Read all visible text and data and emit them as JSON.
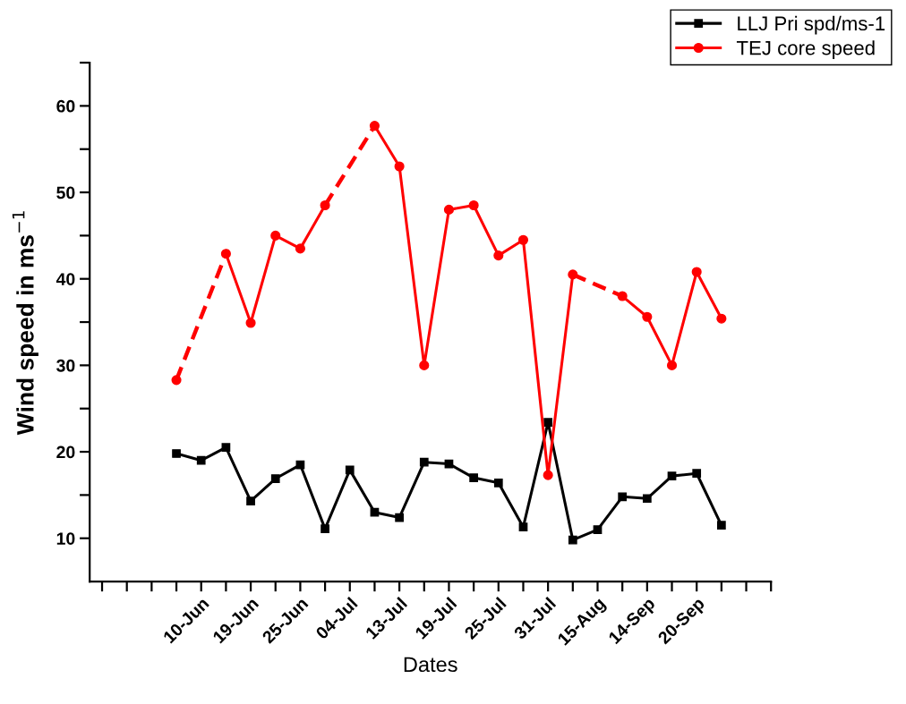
{
  "chart_data": {
    "type": "line",
    "xlabel": "Dates",
    "ylabel": "Wind speed in ms$^{−1}$",
    "categories": [
      null,
      null,
      null,
      null,
      "10-Jun",
      null,
      "19-Jun",
      null,
      "25-Jun",
      null,
      "04-Jul",
      null,
      "13-Jul",
      null,
      "19-Jul",
      null,
      "25-Jul",
      null,
      "31-Jul",
      null,
      "15-Aug",
      null,
      "14-Sep",
      null,
      "20-Sep",
      null,
      null,
      null
    ],
    "series": [
      {
        "name": "LLJ Pri spd/ms-1",
        "color": "#000000",
        "marker": "square",
        "line_style": "solid",
        "values": [
          null,
          null,
          null,
          19.8,
          19.0,
          20.5,
          14.3,
          16.9,
          18.5,
          11.1,
          17.9,
          13.0,
          12.4,
          18.8,
          18.6,
          17.0,
          16.4,
          11.3,
          23.4,
          9.8,
          11.0,
          14.8,
          14.6,
          17.2,
          17.5,
          11.5,
          null,
          null
        ]
      },
      {
        "name": "TEJ core speed",
        "color": "#ff0000",
        "marker": "circle",
        "line_style": "solid",
        "values": [
          null,
          null,
          null,
          28.3,
          null,
          42.9,
          34.9,
          45.0,
          43.5,
          48.5,
          null,
          57.7,
          53.0,
          30.0,
          48.0,
          48.5,
          42.7,
          44.5,
          17.3,
          40.5,
          null,
          38.0,
          35.6,
          30.0,
          40.8,
          35.4,
          null,
          null
        ]
      }
    ],
    "ylim": [
      5,
      65
    ],
    "yticks": [
      10,
      {
        "value": 15,
        "label": null
      },
      20,
      {
        "value": 25,
        "label": null
      },
      30,
      {
        "value": 35,
        "label": null
      },
      40,
      {
        "value": 45,
        "label": null
      },
      50,
      {
        "value": 55,
        "label": null
      },
      60,
      {
        "value": 65,
        "label": null
      }
    ],
    "grid": false,
    "legend": "top right"
  }
}
